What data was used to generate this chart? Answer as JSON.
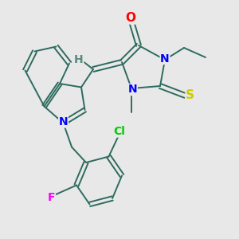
{
  "background_color": "#e8e8e8",
  "bond_color": "#2d6b5e",
  "atoms": {
    "O": {
      "color": "#ff0000"
    },
    "N": {
      "color": "#0000ff"
    },
    "S": {
      "color": "#cccc00"
    },
    "Cl": {
      "color": "#00cc00"
    },
    "F": {
      "color": "#ff00ff"
    },
    "H": {
      "color": "#5a8a80"
    }
  },
  "figsize": [
    3.0,
    3.0
  ],
  "dpi": 100
}
